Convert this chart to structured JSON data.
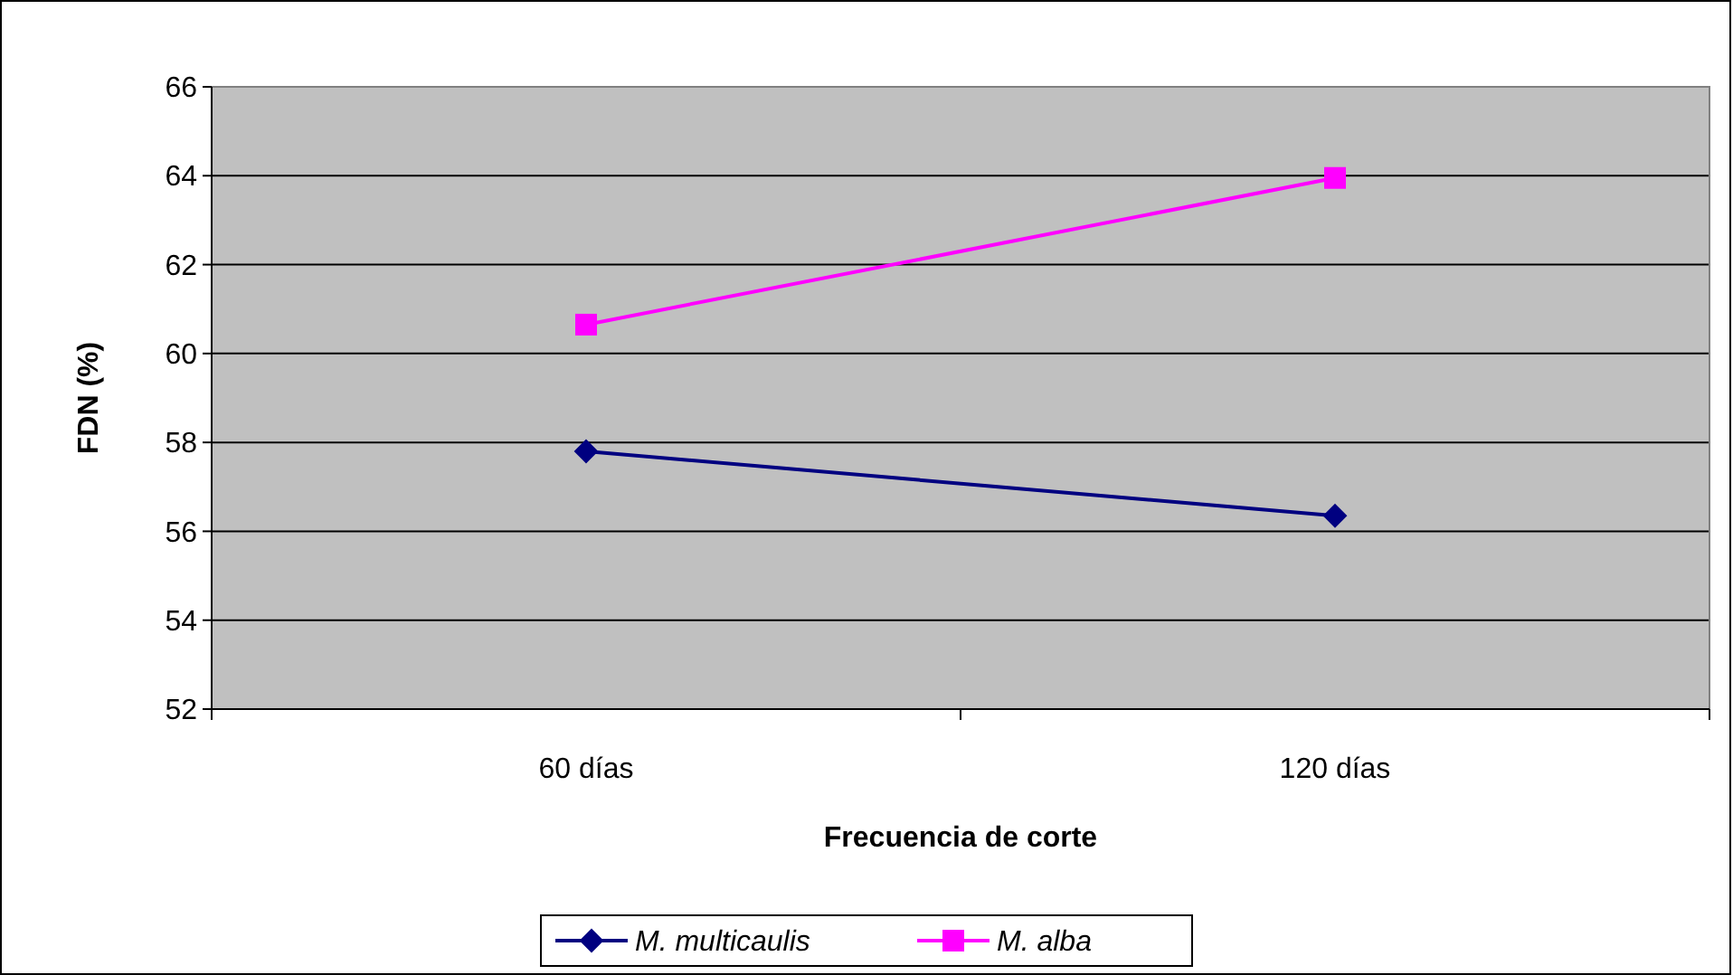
{
  "chart_data": {
    "type": "line",
    "xlabel": "Frecuencia de corte",
    "ylabel": "FDN (%)",
    "categories": [
      "60 días",
      "120 días"
    ],
    "series": [
      {
        "name": "M. multicaulis",
        "color": "#000080",
        "marker": "diamond",
        "values": [
          57.8,
          56.35
        ]
      },
      {
        "name": "M. alba",
        "color": "#ff00ff",
        "marker": "square",
        "values": [
          60.65,
          63.95
        ]
      }
    ],
    "ylim": [
      52,
      66
    ],
    "yticks": [
      52,
      54,
      56,
      58,
      60,
      62,
      64,
      66
    ],
    "grid": "y",
    "legend": "bottom"
  }
}
